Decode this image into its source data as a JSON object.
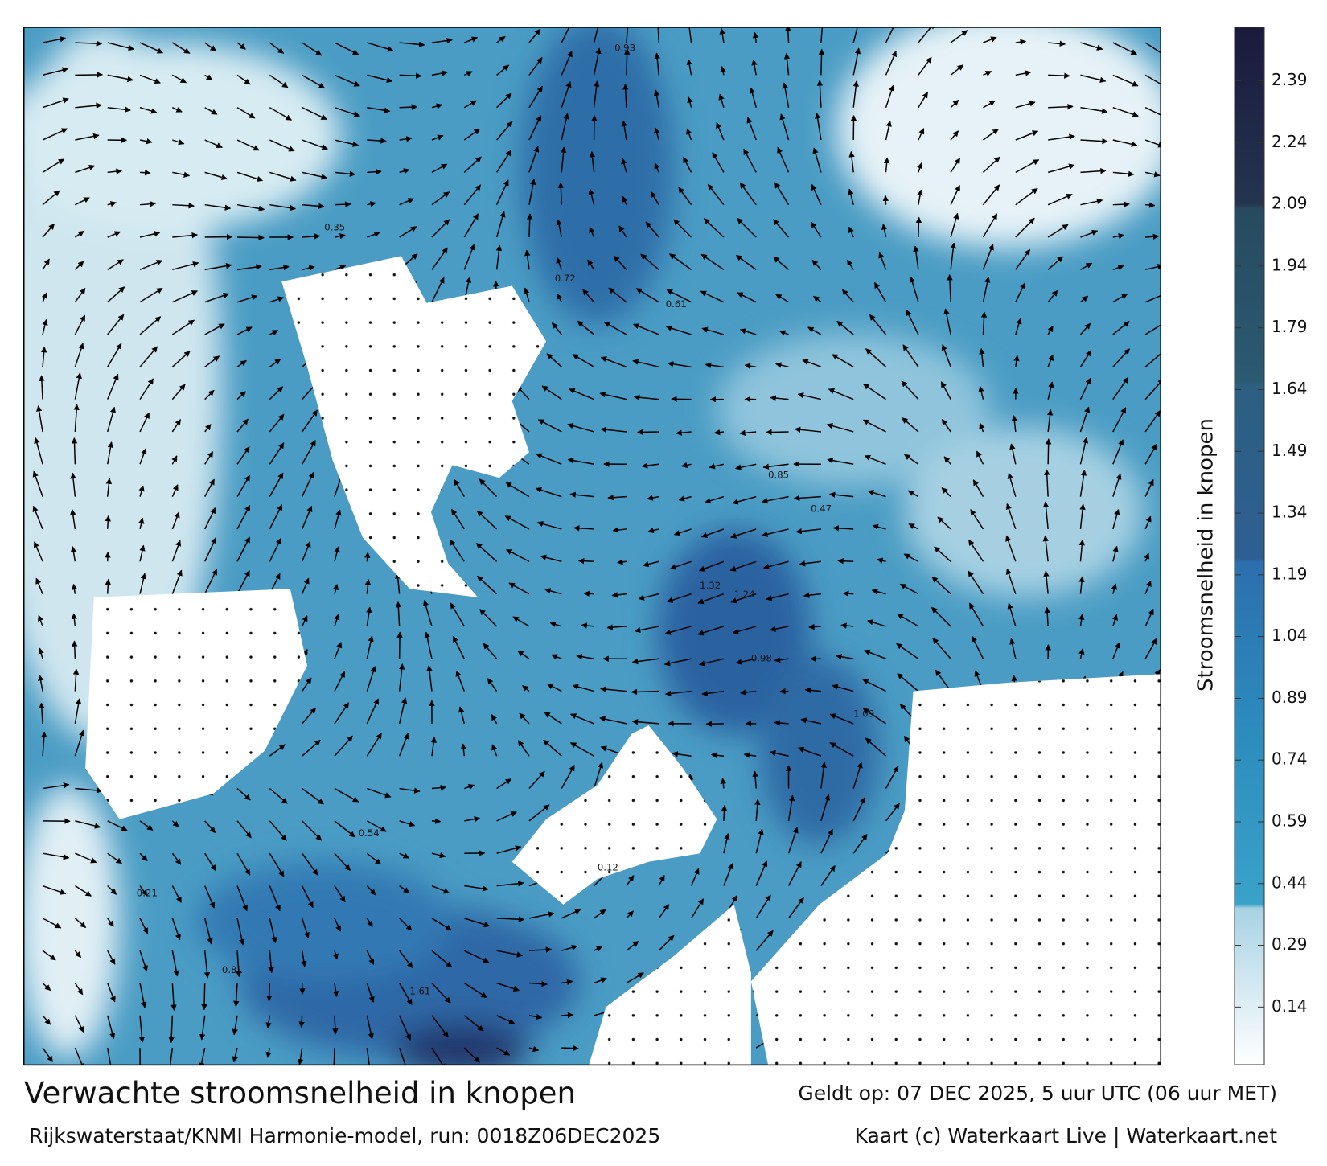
{
  "title": "Verwachte stroomsnelheid in knopen",
  "subtitle": "Rijkswaterstaat/KNMI Harmonie-model, run: 0018Z06DEC2025",
  "valid_time": "Geldt op: 07 DEC 2025, 5 uur UTC (06 uur MET)",
  "credit": "Kaart (c) Waterkaart Live | Waterkaart.net",
  "colorbar": {
    "label": "Stroomsnelheid in knopen",
    "lim": [
      0,
      2.52
    ],
    "ticks": [
      0.14,
      0.29,
      0.44,
      0.59,
      0.74,
      0.89,
      1.04,
      1.19,
      1.34,
      1.49,
      1.64,
      1.79,
      1.94,
      2.09,
      2.24,
      2.39
    ],
    "colorscale": [
      {
        "value": 0,
        "color": "#ffffff"
      },
      {
        "value": 0.38,
        "color": "#a8d2e4"
      },
      {
        "value": 0.39,
        "color": "#3aa2c9"
      },
      {
        "value": 0.8,
        "color": "#2c8dbd"
      },
      {
        "value": 1.22,
        "color": "#2c6fae"
      },
      {
        "value": 1.23,
        "color": "#2e5f93"
      },
      {
        "value": 1.65,
        "color": "#2c5f80"
      },
      {
        "value": 1.66,
        "color": "#2b5a73"
      },
      {
        "value": 2.08,
        "color": "#274a5e"
      },
      {
        "value": 2.09,
        "color": "#243550"
      },
      {
        "value": 2.52,
        "color": "#1b1a3c"
      }
    ]
  },
  "map_labels": [
    "0.93",
    "1.32",
    "1.24",
    "0.85",
    "0.72",
    "0.61",
    "0.47",
    "0.35",
    "0.21",
    "1.09",
    "0.98",
    "0.54",
    "0.81",
    "0.12",
    "1.61"
  ]
}
